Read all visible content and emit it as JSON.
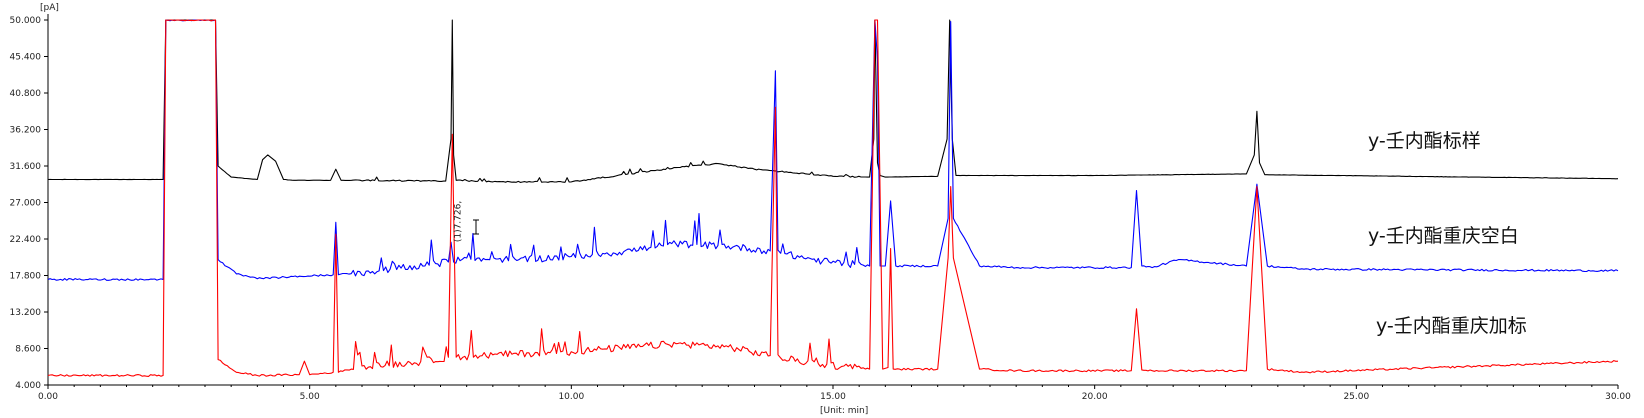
{
  "chart_data": {
    "type": "line",
    "y_unit": "[pA]",
    "x_unit": "[Unit: min]",
    "xlim": [
      0,
      30
    ],
    "ylim": [
      4.0,
      50.0
    ],
    "x_ticks": [
      "0.00",
      "5.00",
      "10.00",
      "15.00",
      "20.00",
      "25.00",
      "30.00"
    ],
    "y_ticks": [
      "4.000",
      "8.600",
      "13.200",
      "17.800",
      "22.400",
      "27.000",
      "31.600",
      "36.200",
      "40.800",
      "45.400",
      "50.000"
    ],
    "peak_annotation": {
      "x": 7.726,
      "text": "(1)7.726,"
    },
    "colors": {
      "black": "#000000",
      "blue": "#0000ff",
      "red": "#ff0000"
    },
    "series": [
      {
        "name": "y-壬内酯标样",
        "color": "#000000",
        "x": [
          0,
          2.2,
          2.25,
          3.2,
          3.25,
          3.5,
          4.0,
          4.1,
          4.2,
          4.35,
          4.5,
          4.7,
          5.4,
          5.5,
          5.6,
          7.6,
          7.7,
          7.726,
          7.75,
          7.8,
          8.5,
          10.0,
          12.0,
          12.8,
          13.5,
          15.0,
          15.7,
          15.78,
          15.8,
          15.85,
          15.9,
          16.0,
          17.0,
          17.18,
          17.23,
          17.28,
          17.35,
          20.0,
          22.9,
          23.05,
          23.1,
          23.15,
          23.25,
          30.0
        ],
        "y": [
          29.9,
          29.9,
          50.0,
          50.0,
          31.6,
          30.2,
          29.9,
          32.4,
          33.0,
          32.2,
          29.9,
          29.8,
          29.8,
          31.2,
          29.8,
          29.7,
          35.0,
          50.0,
          33.0,
          29.8,
          29.6,
          29.6,
          31.4,
          31.9,
          31.2,
          30.3,
          30.2,
          35.0,
          50.0,
          32.0,
          30.4,
          30.2,
          30.3,
          35.0,
          50.0,
          35.0,
          30.4,
          30.4,
          30.6,
          33.0,
          38.5,
          32.0,
          30.5,
          30.0
        ]
      },
      {
        "name": "y-壬内酯重庆空白",
        "color": "#0000ff",
        "x": [
          0,
          2.2,
          2.25,
          3.2,
          3.25,
          3.6,
          4.0,
          5.45,
          5.5,
          5.55,
          6.2,
          7.0,
          7.65,
          7.7,
          7.75,
          8.0,
          9.0,
          10.0,
          11.0,
          12.0,
          13.0,
          13.8,
          13.9,
          13.95,
          14.0,
          14.8,
          15.7,
          15.8,
          15.85,
          15.9,
          16.0,
          16.1,
          16.2,
          17.0,
          17.2,
          17.25,
          17.3,
          17.8,
          18.5,
          20.7,
          20.8,
          20.9,
          21.1,
          21.6,
          22.9,
          23.1,
          23.3,
          24.0,
          30.0
        ],
        "y": [
          17.3,
          17.3,
          50.0,
          50.0,
          19.8,
          18.0,
          17.4,
          17.9,
          24.5,
          17.9,
          18.3,
          19.0,
          19.5,
          22.0,
          19.5,
          20.0,
          19.8,
          20.2,
          20.8,
          21.8,
          21.5,
          20.9,
          43.6,
          21.0,
          20.6,
          19.6,
          19.0,
          50.0,
          45.0,
          19.0,
          19.0,
          27.2,
          19.0,
          19.0,
          25.0,
          49.8,
          25.0,
          19.0,
          18.8,
          18.8,
          28.5,
          19.0,
          18.8,
          19.8,
          19.0,
          29.3,
          19.0,
          18.6,
          18.4
        ]
      },
      {
        "name": "y-壬内酯重庆加标",
        "color": "#ff0000",
        "x": [
          0,
          2.2,
          2.25,
          3.2,
          3.25,
          3.6,
          4.0,
          4.8,
          4.9,
          5.0,
          5.45,
          5.5,
          5.55,
          6.0,
          7.0,
          7.65,
          7.726,
          7.8,
          8.5,
          10.0,
          12.0,
          13.0,
          13.8,
          13.9,
          13.95,
          14.0,
          14.8,
          15.7,
          15.8,
          15.85,
          15.95,
          16.05,
          16.1,
          16.15,
          17.0,
          17.2,
          17.25,
          17.3,
          17.8,
          18.5,
          20.7,
          20.8,
          20.9,
          21.1,
          22.9,
          23.1,
          23.3,
          24.0,
          30.0
        ],
        "y": [
          5.2,
          5.2,
          50.0,
          50.0,
          7.2,
          5.6,
          5.2,
          5.3,
          7.0,
          5.3,
          5.6,
          23.0,
          5.6,
          6.4,
          6.8,
          7.5,
          35.6,
          7.5,
          7.8,
          8.2,
          9.2,
          8.8,
          7.7,
          39.0,
          7.8,
          7.4,
          6.6,
          6.0,
          50.0,
          50.0,
          6.0,
          6.2,
          21.2,
          6.0,
          6.0,
          20.0,
          29.0,
          20.0,
          6.0,
          5.8,
          5.8,
          13.6,
          5.9,
          5.8,
          5.8,
          29.0,
          6.0,
          5.6,
          7.0
        ]
      }
    ]
  }
}
